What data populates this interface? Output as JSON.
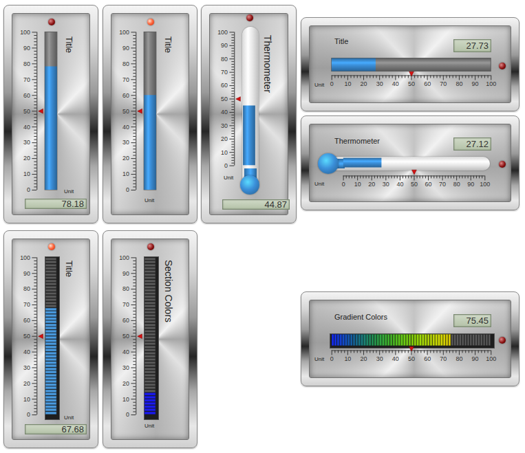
{
  "chart_data": [
    {
      "type": "bar",
      "title": "Title",
      "unit": "Unit",
      "value": 78.18,
      "data_labels": true,
      "threshold": 50,
      "alarm": false,
      "color": "#3b8fd9",
      "ylim": [
        0,
        100
      ],
      "yticks": [
        0,
        10,
        20,
        30,
        40,
        50,
        60,
        70,
        80,
        90,
        100
      ]
    },
    {
      "type": "bar",
      "title": "Title",
      "unit": "Unit",
      "value": 60,
      "data_labels": false,
      "threshold": 50,
      "alarm": true,
      "color": "#3b8fd9",
      "ylim": [
        0,
        100
      ],
      "yticks": [
        0,
        10,
        20,
        30,
        40,
        50,
        60,
        70,
        80,
        90,
        100
      ]
    },
    {
      "type": "thermometer",
      "title": "Thermometer",
      "unit": "Unit",
      "value": 44.87,
      "data_labels": true,
      "threshold": 50,
      "alarm": false,
      "color": "#3b8fd9",
      "ylim": [
        0,
        100
      ],
      "yticks": [
        0,
        10,
        20,
        30,
        40,
        50,
        60,
        70,
        80,
        90,
        100
      ]
    },
    {
      "type": "segments",
      "title": "Title",
      "unit": "Unit",
      "value": 67.68,
      "data_labels": true,
      "threshold": 50,
      "alarm": true,
      "color": "#4a9be0",
      "ylim": [
        0,
        100
      ],
      "yticks": [
        0,
        10,
        20,
        30,
        40,
        50,
        60,
        70,
        80,
        90,
        100
      ]
    },
    {
      "type": "segments",
      "title": "Section Colors",
      "unit": "Unit",
      "value": 14,
      "data_labels": false,
      "threshold": 50,
      "alarm": false,
      "color": "#1b1bf0",
      "ylim": [
        0,
        100
      ],
      "yticks": [
        0,
        10,
        20,
        30,
        40,
        50,
        60,
        70,
        80,
        90,
        100
      ]
    },
    {
      "type": "bar",
      "orientation": "horizontal",
      "title": "Title",
      "unit": "Unit",
      "value": 27.73,
      "data_labels": true,
      "threshold": 50,
      "alarm": false,
      "color": "#3b8fd9",
      "xlim": [
        0,
        100
      ],
      "xticks": [
        0,
        10,
        20,
        30,
        40,
        50,
        60,
        70,
        80,
        90,
        100
      ]
    },
    {
      "type": "thermometer",
      "orientation": "horizontal",
      "title": "Thermometer",
      "unit": "Unit",
      "value": 27.12,
      "data_labels": true,
      "threshold": 50,
      "alarm": false,
      "color": "#3b8fd9",
      "xlim": [
        0,
        100
      ],
      "xticks": [
        0,
        10,
        20,
        30,
        40,
        50,
        60,
        70,
        80,
        90,
        100
      ]
    },
    {
      "type": "segments",
      "orientation": "horizontal",
      "title": "Gradient Colors",
      "unit": "Unit",
      "value": 75.45,
      "data_labels": true,
      "threshold": 50,
      "alarm": false,
      "colors": [
        "#1428ff",
        "#12c012",
        "#f0f000",
        "#ffa000"
      ],
      "xlim": [
        0,
        100
      ],
      "xticks": [
        0,
        10,
        20,
        30,
        40,
        50,
        60,
        70,
        80,
        90,
        100
      ]
    }
  ]
}
